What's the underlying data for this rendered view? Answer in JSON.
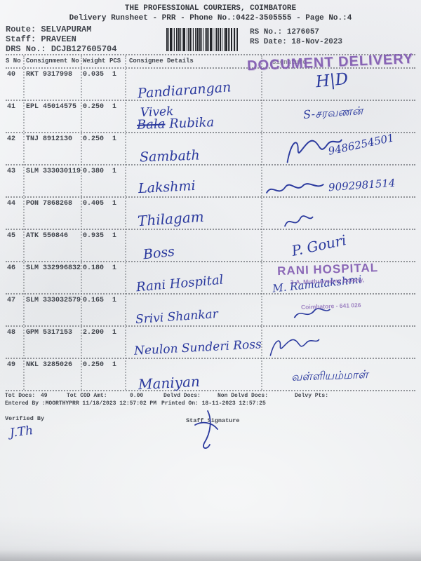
{
  "page": {
    "title": "THE PROFESSIONAL COURIERS, COIMBATORE",
    "subtitle": "Delivery Runsheet - PRR - Phone No.:0422-3505555 - Page No.:4"
  },
  "meta": {
    "route_label": "Route:",
    "route_value": "SELVAPURAM",
    "staff_label": "Staff:",
    "staff_value": "PRAVEEN",
    "drs_label": "DRS No.:",
    "drs_value": "DCJB127605704",
    "rs_no_label": "RS No.:",
    "rs_no_value": "1276057",
    "rs_date_label": "RS Date:",
    "rs_date_value": "18-Nov-2023"
  },
  "stamps": {
    "document_delivery_text": "DOCUMENT DELIVERY",
    "rani_hospital": {
      "name": "RANI HOSPITAL",
      "address1": "3-A, Muthuswamy Colony,",
      "address2": "Coimbatore - 641 026"
    },
    "stamp_color": "#7d55ae"
  },
  "table": {
    "headers": {
      "s_no": "S No",
      "consignment_no": "Consignment No",
      "weight": "Weight",
      "pcs": "PCS",
      "consignee": "Consignee Details",
      "signature": "Signature"
    },
    "rows": [
      {
        "s_no": "40",
        "consignment_no": "RKT 9317998",
        "weight": "0.035",
        "pcs": "1",
        "consignee_written": "Pandiarangan",
        "signature_written": "H|D"
      },
      {
        "s_no": "41",
        "consignment_no": "EPL 45014575",
        "weight": "0.250",
        "pcs": "1",
        "consignee_written": "Vivek",
        "consignee_line2_struck": "Bala",
        "consignee_line2": "Rubika",
        "signature_written": "S-சரவணன்"
      },
      {
        "s_no": "42",
        "consignment_no": "TNJ 8912130",
        "weight": "0.250",
        "pcs": "1",
        "consignee_written": "Sambath",
        "signature_scribble": true,
        "signature_phone": "9486254501"
      },
      {
        "s_no": "43",
        "consignment_no": "SLM 333030119",
        "weight": "0.380",
        "pcs": "1",
        "consignee_written": "Lakshmi",
        "signature_scribble": true,
        "signature_phone": "9092981514"
      },
      {
        "s_no": "44",
        "consignment_no": "PON 7868268",
        "weight": "0.405",
        "pcs": "1",
        "consignee_written": "Thilagam",
        "signature_scribble": true
      },
      {
        "s_no": "45",
        "consignment_no": "ATK 550846",
        "weight": "0.935",
        "pcs": "1",
        "consignee_written": "Boss",
        "signature_written": "P. Gouri"
      },
      {
        "s_no": "46",
        "consignment_no": "SLM 332996832",
        "weight": "0.180",
        "pcs": "1",
        "consignee_written": "Rani Hospital",
        "signature_written": "M. Ramalakshmi",
        "has_stamp": true
      },
      {
        "s_no": "47",
        "consignment_no": "SLM 333032579",
        "weight": "0.165",
        "pcs": "1",
        "consignee_written": "Srivi Shankar",
        "signature_scribble": true
      },
      {
        "s_no": "48",
        "consignment_no": "GPM 5317153",
        "weight": "2.200",
        "pcs": "1",
        "consignee_written": "Neulon Sunderi Ross",
        "signature_scribble": true
      },
      {
        "s_no": "49",
        "consignment_no": "NKL 3285026",
        "weight": "0.250",
        "pcs": "1",
        "consignee_written": "Maniyan",
        "signature_written": "வள்ளியம்மாள்"
      }
    ]
  },
  "footer": {
    "tot_docs_label": "Tot Docs:",
    "tot_docs_value": "49",
    "tot_cod_label": "Tot COD Amt:",
    "tot_cod_value": "0.00",
    "delvd_docs_label": "Delvd Docs:",
    "non_delvd_docs_label": "Non Delvd Docs:",
    "delvy_pts_label": "Delvy Pts:",
    "entered_by": "Entered By :MOORTHYPRR 11/18/2023 12:57:02 PM",
    "printed_on": "Printed On: 18-11-2023 12:57:25",
    "verified_by_label": "Verified By",
    "staff_signature_label": "Staff Signature",
    "verified_by_written": "J.Th"
  },
  "ink": {
    "handwriting_color": "#2b3a9e",
    "print_color": "#42464e"
  }
}
